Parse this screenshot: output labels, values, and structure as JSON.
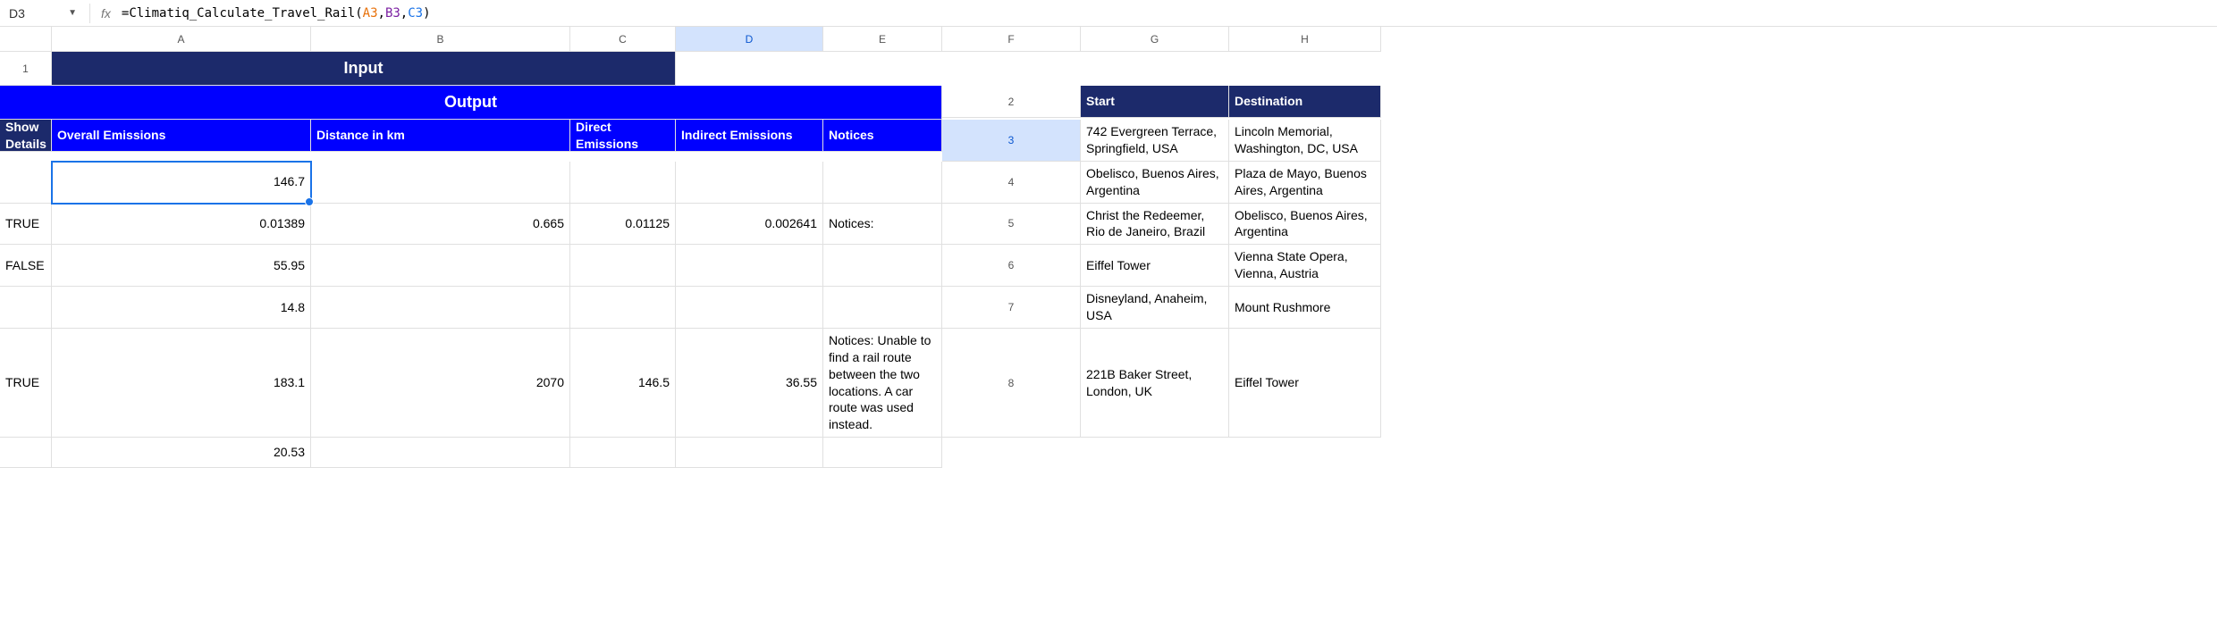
{
  "formula_bar": {
    "cell_ref": "D3",
    "fx_label": "fx",
    "prefix": "=",
    "function_name": "Climatiq_Calculate_Travel_Rail",
    "open_paren": "(",
    "arg1": "A3",
    "comma1": ",",
    "arg2": "B3",
    "comma2": ",",
    "arg3": "C3",
    "close_paren": ")"
  },
  "columns": {
    "A": "A",
    "B": "B",
    "C": "C",
    "D": "D",
    "E": "E",
    "F": "F",
    "G": "G",
    "H": "H"
  },
  "row_nums": [
    "1",
    "2",
    "3",
    "4",
    "5",
    "6",
    "7",
    "8"
  ],
  "active_cell": "D3",
  "section_headers": {
    "input": "Input",
    "output": "Output"
  },
  "col_labels": {
    "start": "Start",
    "destination": "Destination",
    "show_details": "Show Details",
    "overall_emissions": "Overall Emissions",
    "distance": "Distance in km",
    "direct": "Direct Emissions",
    "indirect": "Indirect Emissions",
    "notices": "Notices"
  },
  "rows": [
    {
      "start": "742 Evergreen Terrace, Springfield, USA",
      "destination": "Lincoln Memorial, Washington, DC, USA",
      "show_details": "",
      "overall": "146.7",
      "distance": "",
      "direct": "",
      "indirect": "",
      "notices": ""
    },
    {
      "start": "Obelisco, Buenos Aires, Argentina",
      "destination": "Plaza de Mayo, Buenos Aires, Argentina",
      "show_details": "TRUE",
      "overall": "0.01389",
      "distance": "0.665",
      "direct": "0.01125",
      "indirect": "0.002641",
      "notices": "Notices:"
    },
    {
      "start": "Christ the Redeemer, Rio de Janeiro, Brazil",
      "destination": "Obelisco, Buenos Aires, Argentina",
      "show_details": "FALSE",
      "overall": "55.95",
      "distance": "",
      "direct": "",
      "indirect": "",
      "notices": ""
    },
    {
      "start": "Eiffel Tower",
      "destination": "Vienna State Opera, Vienna, Austria",
      "show_details": "",
      "overall": "14.8",
      "distance": "",
      "direct": "",
      "indirect": "",
      "notices": ""
    },
    {
      "start": "Disneyland, Anaheim, USA",
      "destination": "Mount Rushmore",
      "show_details": "TRUE",
      "overall": "183.1",
      "distance": "2070",
      "direct": "146.5",
      "indirect": "36.55",
      "notices": "Notices: Unable to find a rail route between the two locations. A car route was used instead."
    },
    {
      "start": "221B Baker Street, London, UK",
      "destination": "Eiffel Tower",
      "show_details": "",
      "overall": "20.53",
      "distance": "",
      "direct": "",
      "indirect": "",
      "notices": ""
    }
  ],
  "colors": {
    "input_header_bg": "#1c2a6b",
    "output_header_bg": "#0000ff",
    "header_text": "#ffffff",
    "grid_line": "#e0e0e0",
    "active_outline": "#1a73e8",
    "sel_header_bg": "#d3e3fd",
    "ref_a": "#e8710a",
    "ref_b": "#7b1fa2",
    "ref_c": "#1a73e8"
  }
}
